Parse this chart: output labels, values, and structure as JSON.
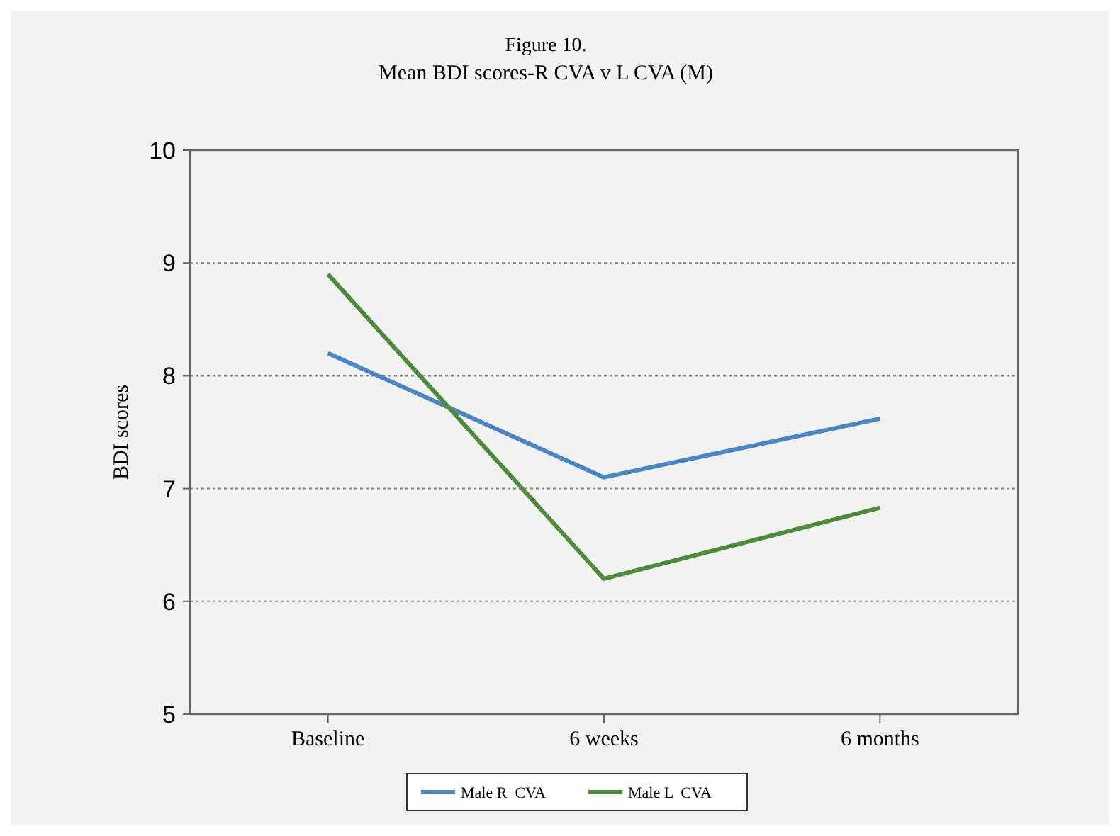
{
  "chart_data": {
    "type": "line",
    "title": "Figure 10.",
    "subtitle": "Mean BDI scores-R CVA v L CVA (M)",
    "ylabel": "BDI scores",
    "categories": [
      "Baseline",
      "6 weeks",
      "6 months"
    ],
    "series": [
      {
        "name": "Male R  CVA",
        "color": "#4a86c5",
        "values": [
          8.2,
          7.1,
          7.62
        ]
      },
      {
        "name": "Male L  CVA",
        "color": "#4e8a3c",
        "values": [
          8.9,
          6.2,
          6.83
        ]
      }
    ],
    "ylim": [
      5,
      10
    ],
    "yticks": [
      5,
      6,
      7,
      8,
      9,
      10
    ],
    "grid": "y",
    "legend": "bottom",
    "marker": "none",
    "line_style": "solid"
  }
}
